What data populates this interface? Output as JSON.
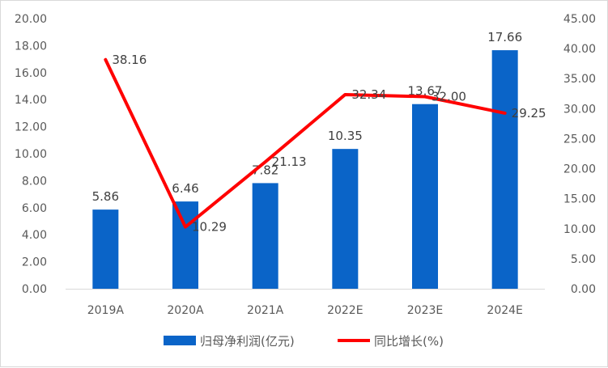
{
  "chart_data": {
    "type": "bar",
    "categories": [
      "2019A",
      "2020A",
      "2021A",
      "2022E",
      "2023E",
      "2024E"
    ],
    "series": [
      {
        "name": "归母净利润(亿元)",
        "type": "bar",
        "axis": "left",
        "color": "#0a64c8",
        "values": [
          5.86,
          6.46,
          7.82,
          10.35,
          13.67,
          17.66
        ],
        "labels": [
          "5.86",
          "6.46",
          "7.82",
          "10.35",
          "13.67",
          "17.66"
        ]
      },
      {
        "name": "同比增长(%)",
        "type": "line",
        "axis": "right",
        "color": "#ff0000",
        "values": [
          38.16,
          10.29,
          21.13,
          32.34,
          32.0,
          29.25
        ],
        "labels": [
          "38.16",
          "10.29",
          "21.13",
          "32.34",
          "32.00",
          "29.25"
        ]
      }
    ],
    "y_left": {
      "min": 0,
      "max": 20,
      "ticks": [
        "0.00",
        "2.00",
        "4.00",
        "6.00",
        "8.00",
        "10.00",
        "12.00",
        "14.00",
        "16.00",
        "18.00",
        "20.00"
      ]
    },
    "y_right": {
      "min": 0,
      "max": 45,
      "ticks": [
        "0.00",
        "5.00",
        "10.00",
        "15.00",
        "20.00",
        "25.00",
        "30.00",
        "35.00",
        "40.00",
        "45.00"
      ]
    },
    "grid": false,
    "legend_position": "bottom"
  }
}
